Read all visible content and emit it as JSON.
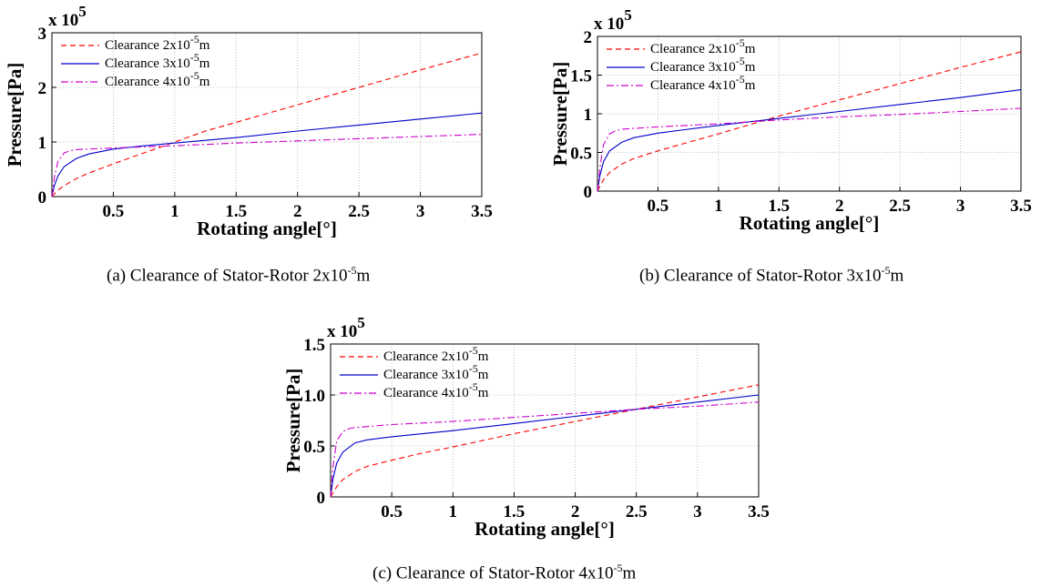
{
  "captions": [
    {
      "text": "(a) Clearance of Stator-Rotor 2x10",
      "exp": "-5",
      "unit": "m"
    },
    {
      "text": "(b) Clearance of Stator-Rotor 3x10",
      "exp": "-5",
      "unit": "m"
    },
    {
      "text": "(c) Clearance of Stator-Rotor 4x10",
      "exp": "-5",
      "unit": "m"
    }
  ],
  "colors": {
    "series_2e5": "#ff0000",
    "series_3e5": "#0000cc",
    "series_4e5": "#cc00cc",
    "grid": "#b0b0b0"
  },
  "chart_data": [
    {
      "type": "line",
      "xlabel": "Rotating angle[°]",
      "ylabel": "Pressure[Pa]",
      "multiplier": {
        "base": "x 10",
        "exp": "5"
      },
      "xlim": [
        0,
        3.5
      ],
      "ylim": [
        0,
        3
      ],
      "xticks": [
        "0.5",
        "1",
        "1.5",
        "2",
        "2.5",
        "3",
        "3.5"
      ],
      "yticks": [
        "0",
        "1",
        "2",
        "3"
      ],
      "grid": true,
      "legend_position": "top-left",
      "series": [
        {
          "name": "Clearance 2x10",
          "exp": "-5",
          "unit": "m",
          "style": "dashed",
          "x": [
            0,
            0.05,
            0.1,
            0.2,
            0.3,
            0.5,
            0.75,
            1.0,
            1.25,
            1.5,
            2.0,
            2.5,
            3.0,
            3.5
          ],
          "y": [
            0,
            0.12,
            0.2,
            0.33,
            0.43,
            0.6,
            0.8,
            1.0,
            1.2,
            1.36,
            1.68,
            2.0,
            2.32,
            2.63
          ]
        },
        {
          "name": "Clearance 3x10",
          "exp": "-5",
          "unit": "m",
          "style": "solid",
          "x": [
            0,
            0.02,
            0.05,
            0.1,
            0.2,
            0.3,
            0.5,
            0.75,
            1.0,
            1.5,
            2.0,
            2.5,
            3.0,
            3.5
          ],
          "y": [
            0,
            0.2,
            0.38,
            0.55,
            0.7,
            0.78,
            0.87,
            0.93,
            0.98,
            1.08,
            1.2,
            1.31,
            1.42,
            1.53
          ]
        },
        {
          "name": "Clearance 4x10",
          "exp": "-5",
          "unit": "m",
          "style": "dashdot",
          "x": [
            0,
            0.02,
            0.05,
            0.1,
            0.15,
            0.2,
            0.3,
            0.5,
            1.0,
            1.5,
            2.0,
            2.5,
            3.0,
            3.5
          ],
          "y": [
            0,
            0.35,
            0.65,
            0.8,
            0.84,
            0.86,
            0.87,
            0.89,
            0.93,
            0.98,
            1.02,
            1.06,
            1.1,
            1.14
          ]
        }
      ]
    },
    {
      "type": "line",
      "xlabel": "Rotating angle[°]",
      "ylabel": "Pressure[Pa]",
      "multiplier": {
        "base": "x 10",
        "exp": "5"
      },
      "xlim": [
        0,
        3.5
      ],
      "ylim": [
        0,
        2
      ],
      "xticks": [
        "0.5",
        "1",
        "1.5",
        "2",
        "2.5",
        "3",
        "3.5"
      ],
      "yticks": [
        "0",
        "0.5",
        "1",
        "1.5",
        "2"
      ],
      "grid": true,
      "legend_position": "top-left",
      "series": [
        {
          "name": "Clearance 2x10",
          "exp": "-5",
          "unit": "m",
          "style": "dashed",
          "x": [
            0,
            0.05,
            0.1,
            0.2,
            0.3,
            0.5,
            0.75,
            1.0,
            1.5,
            2.0,
            2.5,
            3.0,
            3.5
          ],
          "y": [
            0,
            0.15,
            0.24,
            0.35,
            0.42,
            0.52,
            0.63,
            0.74,
            0.97,
            1.18,
            1.39,
            1.6,
            1.8
          ]
        },
        {
          "name": "Clearance 3x10",
          "exp": "-5",
          "unit": "m",
          "style": "solid",
          "x": [
            0,
            0.02,
            0.05,
            0.1,
            0.2,
            0.3,
            0.5,
            0.75,
            1.0,
            1.5,
            2.0,
            2.5,
            3.0,
            3.5
          ],
          "y": [
            0,
            0.2,
            0.38,
            0.52,
            0.63,
            0.69,
            0.75,
            0.8,
            0.85,
            0.94,
            1.03,
            1.12,
            1.21,
            1.31
          ]
        },
        {
          "name": "Clearance 4x10",
          "exp": "-5",
          "unit": "m",
          "style": "dashdot",
          "x": [
            0,
            0.02,
            0.05,
            0.1,
            0.15,
            0.2,
            0.3,
            0.5,
            1.0,
            1.5,
            2.0,
            2.5,
            3.0,
            3.5
          ],
          "y": [
            0,
            0.3,
            0.6,
            0.74,
            0.78,
            0.8,
            0.81,
            0.83,
            0.87,
            0.92,
            0.96,
            0.99,
            1.03,
            1.07
          ]
        }
      ]
    },
    {
      "type": "line",
      "xlabel": "Rotating angle[°]",
      "ylabel": "Pressure[Pa]",
      "multiplier": {
        "base": "x 10",
        "exp": "5"
      },
      "xlim": [
        0,
        3.5
      ],
      "ylim": [
        0,
        1.5
      ],
      "xticks": [
        "0.5",
        "1",
        "1.5",
        "2",
        "2.5",
        "3",
        "3.5"
      ],
      "yticks": [
        "0",
        "0.5",
        "1.0",
        "1.5"
      ],
      "grid": true,
      "legend_position": "top-left",
      "series": [
        {
          "name": "Clearance 2x10",
          "exp": "-5",
          "unit": "m",
          "style": "dashed",
          "x": [
            0,
            0.05,
            0.1,
            0.2,
            0.3,
            0.5,
            0.75,
            1.0,
            1.5,
            2.0,
            2.5,
            3.0,
            3.5
          ],
          "y": [
            0,
            0.1,
            0.17,
            0.25,
            0.3,
            0.36,
            0.43,
            0.49,
            0.62,
            0.74,
            0.86,
            0.98,
            1.1
          ]
        },
        {
          "name": "Clearance 3x10",
          "exp": "-5",
          "unit": "m",
          "style": "solid",
          "x": [
            0,
            0.02,
            0.05,
            0.1,
            0.2,
            0.3,
            0.5,
            1.0,
            1.5,
            2.0,
            2.5,
            3.0,
            3.5
          ],
          "y": [
            0,
            0.18,
            0.33,
            0.44,
            0.53,
            0.56,
            0.59,
            0.65,
            0.72,
            0.79,
            0.86,
            0.93,
            1.0
          ]
        },
        {
          "name": "Clearance 4x10",
          "exp": "-5",
          "unit": "m",
          "style": "dashdot",
          "x": [
            0,
            0.02,
            0.05,
            0.1,
            0.15,
            0.2,
            0.3,
            0.5,
            1.0,
            1.5,
            2.0,
            2.5,
            3.0,
            3.5
          ],
          "y": [
            0,
            0.3,
            0.55,
            0.64,
            0.67,
            0.68,
            0.69,
            0.71,
            0.74,
            0.78,
            0.82,
            0.86,
            0.89,
            0.93
          ]
        }
      ]
    }
  ]
}
